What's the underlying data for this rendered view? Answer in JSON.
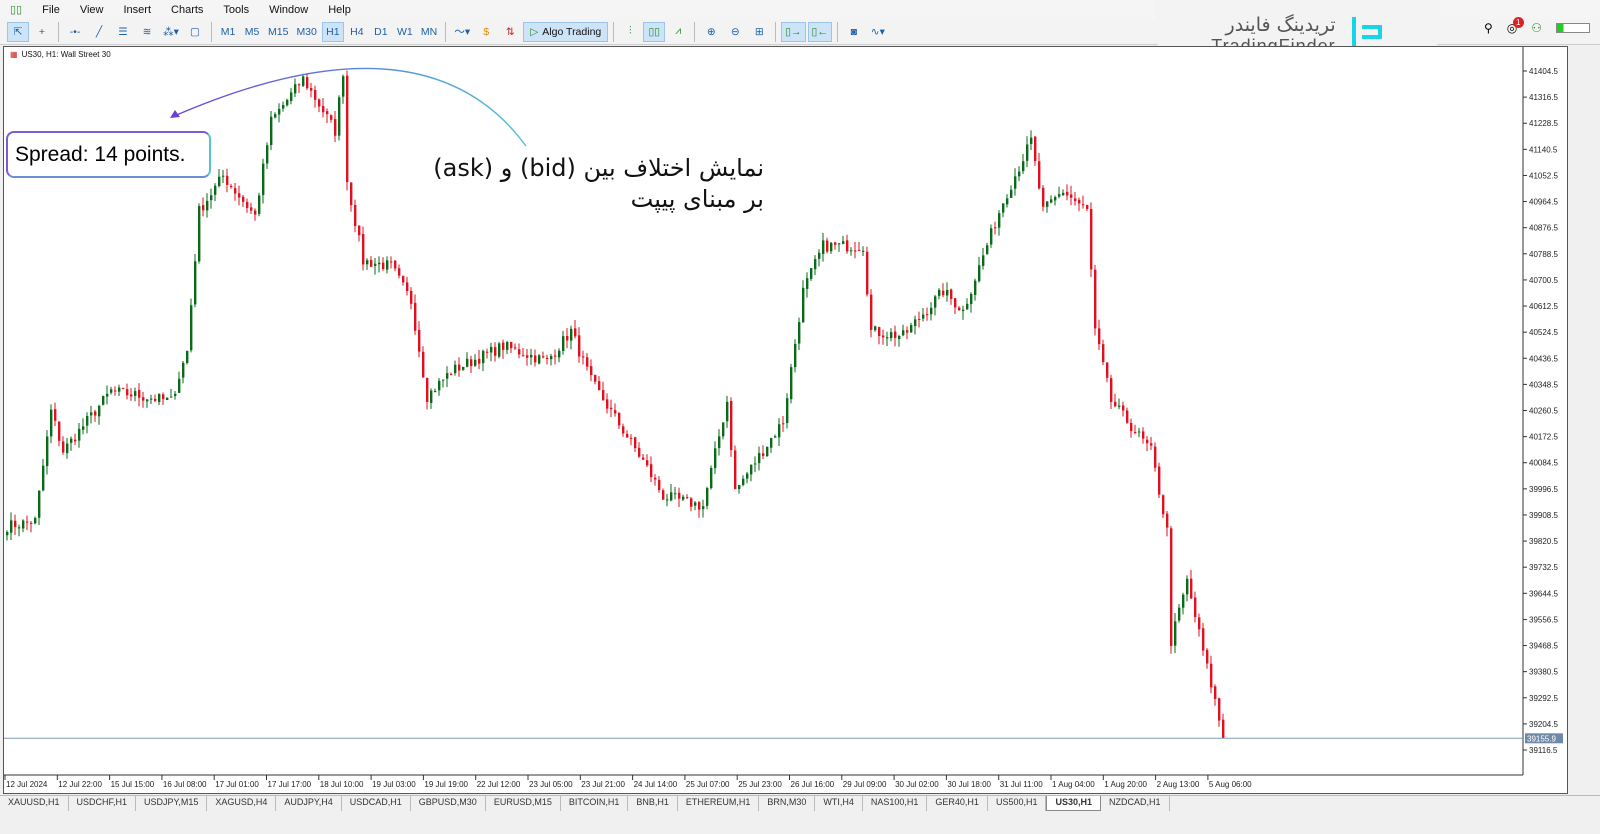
{
  "menu": [
    "File",
    "View",
    "Insert",
    "Charts",
    "Tools",
    "Window",
    "Help"
  ],
  "toolbar": {
    "timeframes": [
      "M1",
      "M5",
      "M15",
      "M30",
      "H1",
      "H4",
      "D1",
      "W1",
      "MN"
    ],
    "active_timeframe": "H1",
    "algo_trading": "Algo Trading",
    "notification_count": "1"
  },
  "logo": {
    "fa": "تریدینگ فایندر",
    "en": "TradingFinder"
  },
  "chart": {
    "title": "US30, H1:  Wall Street 30",
    "spread_label": "Spread: 14 points.",
    "note_fa_line1": "نمایش اختلاف بین (bid) و (ask)",
    "note_fa_line2": "بر مبنای پیپت",
    "current_price": "39155.9"
  },
  "chart_data": {
    "type": "candlestick",
    "symbol": "US30",
    "timeframe": "H1",
    "y_ticks": [
      "41404.5",
      "41316.5",
      "41228.5",
      "41140.5",
      "41052.5",
      "40964.5",
      "40876.5",
      "40788.5",
      "40700.5",
      "40612.5",
      "40524.5",
      "40436.5",
      "40348.5",
      "40260.5",
      "40172.5",
      "40084.5",
      "39996.5",
      "39908.5",
      "39820.5",
      "39732.5",
      "39644.5",
      "39556.5",
      "39468.5",
      "39380.5",
      "39292.5",
      "39204.5",
      "39116.5"
    ],
    "ylim": [
      39090,
      41450
    ],
    "x_ticks": [
      "12 Jul 2024",
      "12 Jul 22:00",
      "15 Jul 15:00",
      "16 Jul 08:00",
      "17 Jul 01:00",
      "17 Jul 17:00",
      "18 Jul 10:00",
      "19 Jul 03:00",
      "19 Jul 19:00",
      "22 Jul 12:00",
      "23 Jul 05:00",
      "23 Jul 21:00",
      "24 Jul 14:00",
      "25 Jul 07:00",
      "25 Jul 23:00",
      "26 Jul 16:00",
      "29 Jul 09:00",
      "30 Jul 02:00",
      "30 Jul 18:00",
      "31 Jul 11:00",
      "1 Aug 04:00",
      "1 Aug 20:00",
      "2 Aug 13:00",
      "5 Aug 06:00"
    ],
    "price_path": [
      [
        0,
        39871
      ],
      [
        7,
        39888
      ],
      [
        11,
        40258
      ],
      [
        14,
        40124
      ],
      [
        26,
        40326
      ],
      [
        41,
        40292
      ],
      [
        45,
        40461
      ],
      [
        48,
        40933
      ],
      [
        54,
        41051
      ],
      [
        62,
        40916
      ],
      [
        66,
        41236
      ],
      [
        74,
        41378
      ],
      [
        79,
        41270
      ],
      [
        82,
        41202
      ],
      [
        84,
        41404
      ],
      [
        85,
        41034
      ],
      [
        89,
        40764
      ],
      [
        96,
        40747
      ],
      [
        101,
        40629
      ],
      [
        105,
        40309
      ],
      [
        111,
        40393
      ],
      [
        124,
        40477
      ],
      [
        135,
        40427
      ],
      [
        141,
        40528
      ],
      [
        146,
        40360
      ],
      [
        159,
        40090
      ],
      [
        164,
        39972
      ],
      [
        174,
        39938
      ],
      [
        180,
        40292
      ],
      [
        182,
        39989
      ],
      [
        194,
        40225
      ],
      [
        199,
        40663
      ],
      [
        204,
        40815
      ],
      [
        214,
        40815
      ],
      [
        216,
        40528
      ],
      [
        224,
        40511
      ],
      [
        234,
        40663
      ],
      [
        239,
        40596
      ],
      [
        249,
        40966
      ],
      [
        256,
        41169
      ],
      [
        259,
        40933
      ],
      [
        264,
        41000
      ],
      [
        270,
        40933
      ],
      [
        272,
        40528
      ],
      [
        276,
        40292
      ],
      [
        286,
        40124
      ],
      [
        290,
        39854
      ],
      [
        291,
        39483
      ],
      [
        295,
        39685
      ],
      [
        299,
        39449
      ],
      [
        302,
        39281
      ],
      [
        304,
        39156
      ]
    ],
    "colors": {
      "up": "#0a6a1a",
      "down": "#e01020",
      "bid_line": "#7f9cb8"
    }
  },
  "tabs": [
    "XAUUSD,H1",
    "USDCHF,H1",
    "USDJPY,M15",
    "XAGUSD,H4",
    "AUDJPY,H4",
    "USDCAD,H1",
    "GBPUSD,M30",
    "EURUSD,M15",
    "BITCOIN,H1",
    "BNB,H1",
    "ETHEREUM,H1",
    "BRN,M30",
    "WTI,H4",
    "NAS100,H1",
    "GER40,H1",
    "US500,H1",
    "US30,H1",
    "NZDCAD,H1"
  ],
  "active_tab": "US30,H1"
}
